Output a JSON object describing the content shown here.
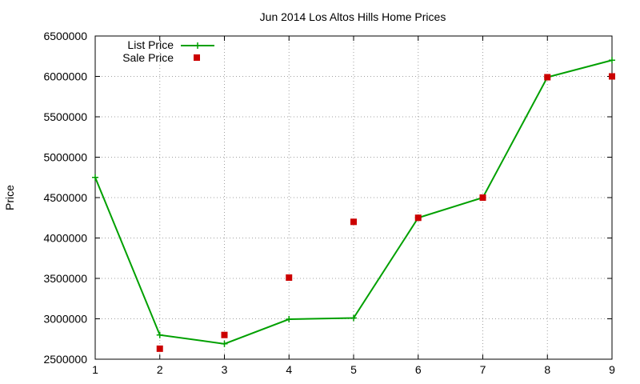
{
  "chart_data": {
    "type": "line",
    "title": "Jun 2014 Los Altos Hills Home Prices",
    "xlabel": "",
    "ylabel": "Price",
    "x": [
      1,
      2,
      3,
      4,
      5,
      6,
      7,
      8,
      9
    ],
    "xlim": [
      1,
      9
    ],
    "ylim": [
      2500000,
      6500000
    ],
    "x_ticks": [
      "1",
      "2",
      "3",
      "4",
      "5",
      "6",
      "7",
      "8",
      "9"
    ],
    "y_ticks": [
      "2500000",
      "3000000",
      "3500000",
      "4000000",
      "4500000",
      "5000000",
      "5500000",
      "6000000",
      "6500000"
    ],
    "grid": true,
    "legend_position": "top-left",
    "series": [
      {
        "name": "List Price",
        "style": "line+plus-markers",
        "color": "#00a000",
        "values": [
          4750000,
          2800000,
          2690000,
          2995000,
          3010000,
          4250000,
          4500000,
          5990000,
          6200000
        ]
      },
      {
        "name": "Sale Price",
        "style": "square-markers",
        "color": "#cc0000",
        "values": [
          null,
          2630000,
          2800000,
          3510000,
          4200000,
          4250000,
          4500000,
          5990000,
          6000000
        ]
      }
    ]
  }
}
